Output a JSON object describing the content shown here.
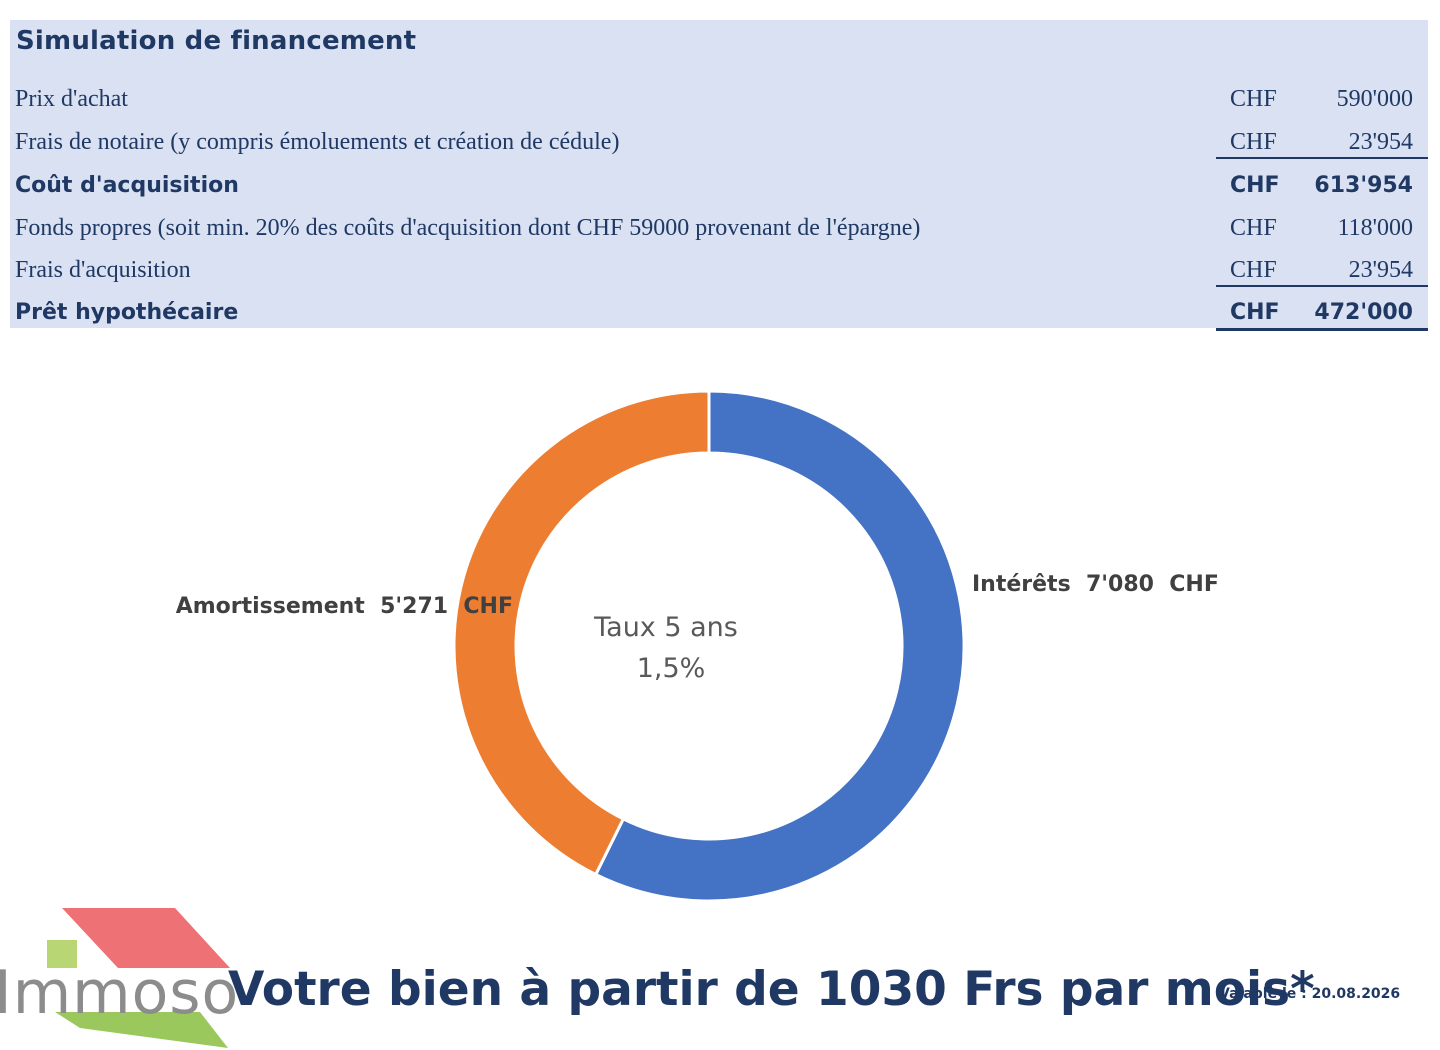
{
  "panel": {
    "title": "Simulation de financement",
    "rows": [
      {
        "label": "Prix d'achat",
        "currency": "CHF",
        "amount": "590'000"
      },
      {
        "label": "Frais de notaire (y compris émoluements et création de cédule)",
        "currency": "CHF",
        "amount": "23'954"
      },
      {
        "label": "Coût d'acquisition",
        "currency": "CHF",
        "amount": "613'954"
      },
      {
        "label": "Fonds propres (soit min. 20% des coûts d'acquisition dont CHF 59000 provenant de l'épargne)",
        "currency": "CHF",
        "amount": "118'000"
      },
      {
        "label": "Frais d'acquisition",
        "currency": "CHF",
        "amount": "23'954"
      },
      {
        "label": "Prêt hypothécaire",
        "currency": "CHF",
        "amount": "472'000"
      }
    ]
  },
  "chart_data": {
    "type": "pie",
    "style": "donut",
    "center_text": [
      "Taux 5 ans",
      "1,5%"
    ],
    "series": [
      {
        "name": "Intérêts",
        "value": 7080,
        "label": "Intérêts  7'080  CHF",
        "color": "#4472c4"
      },
      {
        "name": "Amortissement",
        "value": 5271,
        "label": "Amortissement  5'271  CHF",
        "color": "#ed7d31"
      }
    ],
    "start_angle_deg": 0,
    "direction": "clockwise"
  },
  "footer": {
    "logo_text": "Immoso",
    "tagline": "Votre bien à partir de 1030 Frs par mois*",
    "validity": "Valable le : 20.08.2026",
    "logo_colors": {
      "roof": "#ee7275",
      "square": "#b9d675",
      "base": "#9bc85c"
    }
  }
}
